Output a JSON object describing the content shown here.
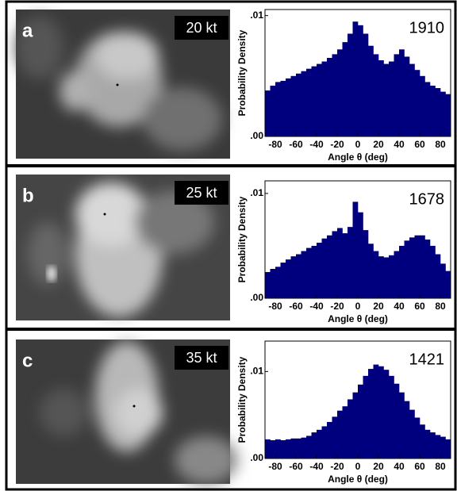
{
  "chart_data": [
    {
      "type": "histogram",
      "panel_label": "a",
      "wind_label": "20 kt",
      "sample_count": 1910,
      "ylabel": "Probability Density",
      "xlabel": "Angle θ (deg)",
      "color": "#00007f",
      "bins": [
        -90,
        -85,
        -80,
        -75,
        -70,
        -65,
        -60,
        -55,
        -50,
        -45,
        -40,
        -35,
        -30,
        -25,
        -20,
        -15,
        -10,
        -5,
        0,
        5,
        10,
        15,
        20,
        25,
        30,
        35,
        40,
        45,
        50,
        55,
        60,
        65,
        70,
        75,
        80,
        85,
        90
      ],
      "values": [
        0.0038,
        0.0042,
        0.0045,
        0.0046,
        0.0048,
        0.005,
        0.0052,
        0.0054,
        0.0056,
        0.0058,
        0.006,
        0.0062,
        0.0065,
        0.0068,
        0.0072,
        0.0078,
        0.0085,
        0.0095,
        0.0092,
        0.0085,
        0.0075,
        0.0068,
        0.0063,
        0.006,
        0.0062,
        0.0068,
        0.0072,
        0.0066,
        0.006,
        0.0055,
        0.005,
        0.0045,
        0.0042,
        0.004,
        0.0037,
        0.0035
      ],
      "xlim": [
        -90,
        90
      ],
      "ylim": [
        0,
        0.0105
      ],
      "xticks": [
        -80,
        -60,
        -40,
        -20,
        0,
        20,
        40,
        60,
        80
      ],
      "yticks": [
        {
          "value": 0,
          "label": ".00"
        },
        {
          "value": 0.01,
          "label": ".01"
        }
      ]
    },
    {
      "type": "histogram",
      "panel_label": "b",
      "wind_label": "25 kt",
      "sample_count": 1678,
      "ylabel": "Probability Density",
      "xlabel": "Angle θ (deg)",
      "color": "#00007f",
      "bins": [
        -90,
        -85,
        -80,
        -75,
        -70,
        -65,
        -60,
        -55,
        -50,
        -45,
        -40,
        -35,
        -30,
        -25,
        -20,
        -15,
        -10,
        -5,
        0,
        5,
        10,
        15,
        20,
        25,
        30,
        35,
        40,
        45,
        50,
        55,
        60,
        65,
        70,
        75,
        80,
        85,
        90
      ],
      "values": [
        0.0025,
        0.0028,
        0.003,
        0.0034,
        0.0037,
        0.004,
        0.0042,
        0.0045,
        0.0048,
        0.005,
        0.0053,
        0.0057,
        0.006,
        0.0064,
        0.0067,
        0.0062,
        0.0068,
        0.0092,
        0.0082,
        0.0065,
        0.0052,
        0.0045,
        0.004,
        0.0039,
        0.0041,
        0.0045,
        0.005,
        0.0055,
        0.0058,
        0.006,
        0.006,
        0.0056,
        0.005,
        0.0042,
        0.0033,
        0.0026
      ],
      "xlim": [
        -90,
        90
      ],
      "ylim": [
        0,
        0.0112
      ],
      "xticks": [
        -80,
        -60,
        -40,
        -20,
        0,
        20,
        40,
        60,
        80
      ],
      "yticks": [
        {
          "value": 0,
          "label": ".00"
        },
        {
          "value": 0.01,
          "label": ".01"
        }
      ]
    },
    {
      "type": "histogram",
      "panel_label": "c",
      "wind_label": "35 kt",
      "sample_count": 1421,
      "ylabel": "Probability Density",
      "xlabel": "Angle θ (deg)",
      "color": "#00007f",
      "bins": [
        -90,
        -85,
        -80,
        -75,
        -70,
        -65,
        -60,
        -55,
        -50,
        -45,
        -40,
        -35,
        -30,
        -25,
        -20,
        -15,
        -10,
        -5,
        0,
        5,
        10,
        15,
        20,
        25,
        30,
        35,
        40,
        45,
        50,
        55,
        60,
        65,
        70,
        75,
        80,
        85,
        90
      ],
      "values": [
        0.0022,
        0.0021,
        0.0022,
        0.0021,
        0.0022,
        0.0023,
        0.0023,
        0.0024,
        0.0026,
        0.003,
        0.0033,
        0.0037,
        0.0042,
        0.0048,
        0.0055,
        0.006,
        0.0068,
        0.0076,
        0.0085,
        0.0095,
        0.0103,
        0.0108,
        0.0106,
        0.0102,
        0.0095,
        0.0086,
        0.0076,
        0.0066,
        0.0056,
        0.0047,
        0.0039,
        0.0033,
        0.003,
        0.0027,
        0.0025,
        0.0022
      ],
      "xlim": [
        -90,
        90
      ],
      "ylim": [
        0,
        0.0135
      ],
      "xticks": [
        -80,
        -60,
        -40,
        -20,
        0,
        20,
        40,
        60,
        80
      ],
      "yticks": [
        {
          "value": 0,
          "label": ".00"
        },
        {
          "value": 0.01,
          "label": ".01"
        }
      ]
    }
  ]
}
